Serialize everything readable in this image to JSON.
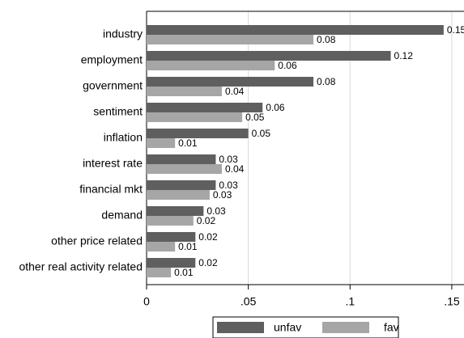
{
  "chart_data": {
    "type": "bar",
    "orientation": "horizontal",
    "categories": [
      "industry",
      "employment",
      "government",
      "sentiment",
      "inflation",
      "interest rate",
      "financial mkt",
      "demand",
      "other price related",
      "other real activity related"
    ],
    "series": [
      {
        "name": "unfav",
        "color": "#5f5f5f",
        "values": [
          0.146,
          0.12,
          0.082,
          0.057,
          0.05,
          0.034,
          0.034,
          0.028,
          0.024,
          0.024
        ],
        "value_labels": [
          "0.15",
          "0.12",
          "0.08",
          "0.06",
          "0.05",
          "0.03",
          "0.03",
          "0.03",
          "0.02",
          "0.02"
        ]
      },
      {
        "name": "fav",
        "color": "#a6a6a6",
        "values": [
          0.082,
          0.063,
          0.037,
          0.047,
          0.014,
          0.037,
          0.031,
          0.023,
          0.014,
          0.012
        ],
        "value_labels": [
          "0.08",
          "0.06",
          "0.04",
          "0.05",
          "0.01",
          "0.04",
          "0.03",
          "0.02",
          "0.01",
          "0.01"
        ]
      }
    ],
    "xlim": [
      0,
      0.156
    ],
    "xticks": [
      0,
      {
        "value": 0.05,
        "label": ".05"
      },
      {
        "value": 0.1,
        "label": ".1"
      },
      {
        "value": 0.15,
        "label": ".15"
      }
    ],
    "grid": true
  }
}
